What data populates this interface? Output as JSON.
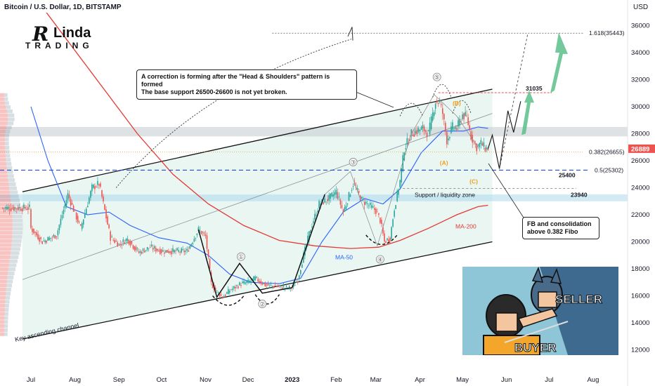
{
  "header": {
    "symbol": "Bitcoin / U.S. Dollar, 1D, BITSTAMP",
    "currency": "USD"
  },
  "logo": {
    "line1": "R",
    "line1b": "Linda",
    "line2": "TRADING"
  },
  "callouts": {
    "hs_line1": "A correction is forming after the \"Head & Shoulders\" pattern is formed",
    "hs_line2": "The base support 26500-26600 is not yet broken.",
    "fb_line1": "FB and consolidation",
    "fb_line2": "above 0.382 Fibo"
  },
  "annotations": {
    "support_zone": "Support / liquidity zone",
    "channel": "Key ascending channel",
    "ma50": "MA-50",
    "ma200": "MA-200",
    "wave_a": "(A)",
    "wave_b": "(B)",
    "wave_c": "(C)",
    "meme_seller": "SELLER",
    "meme_buyer": "BUYER"
  },
  "chart_data": {
    "type": "candlestick",
    "title": "Bitcoin / U.S. Dollar, 1D, BITSTAMP",
    "ylabel": "USD",
    "ylim": [
      11000,
      37500
    ],
    "y_ticks": [
      "12000",
      "14000",
      "16000",
      "18000",
      "20000",
      "22000",
      "24000",
      "26000",
      "28000",
      "30000",
      "32000",
      "34000",
      "36000"
    ],
    "x_ticks": [
      "Jul",
      "Aug",
      "Sep",
      "Oct",
      "Nov",
      "Dec",
      "2023",
      "Feb",
      "Mar",
      "Apr",
      "May",
      "Jun",
      "Jul",
      "Aug"
    ],
    "x_tick_index": [
      0,
      31,
      62,
      92,
      123,
      153,
      184,
      215,
      243,
      274,
      304,
      335,
      365,
      396
    ],
    "x_start": "2022-06-15",
    "price_path": [
      [
        0,
        21000
      ],
      [
        8,
        20000
      ],
      [
        18,
        20500
      ],
      [
        26,
        23500
      ],
      [
        35,
        21000
      ],
      [
        43,
        24000
      ],
      [
        48,
        24300
      ],
      [
        56,
        20300
      ],
      [
        62,
        19800
      ],
      [
        68,
        20200
      ],
      [
        76,
        19200
      ],
      [
        84,
        19600
      ],
      [
        92,
        19300
      ],
      [
        100,
        19300
      ],
      [
        110,
        19300
      ],
      [
        118,
        20900
      ],
      [
        123,
        20400
      ],
      [
        127,
        16900
      ],
      [
        131,
        16300
      ],
      [
        135,
        15900
      ],
      [
        140,
        16400
      ],
      [
        148,
        16900
      ],
      [
        153,
        17000
      ],
      [
        158,
        17300
      ],
      [
        165,
        16800
      ],
      [
        172,
        16700
      ],
      [
        180,
        16600
      ],
      [
        184,
        16600
      ],
      [
        188,
        17200
      ],
      [
        192,
        19000
      ],
      [
        197,
        21000
      ],
      [
        203,
        22800
      ],
      [
        210,
        23200
      ],
      [
        215,
        23700
      ],
      [
        220,
        22200
      ],
      [
        227,
        24300
      ],
      [
        233,
        23100
      ],
      [
        238,
        22700
      ],
      [
        243,
        22300
      ],
      [
        246,
        21600
      ],
      [
        249,
        20000
      ],
      [
        253,
        20300
      ],
      [
        256,
        22500
      ],
      [
        260,
        24500
      ],
      [
        263,
        26900
      ],
      [
        268,
        28000
      ],
      [
        272,
        28200
      ],
      [
        276,
        28400
      ],
      [
        280,
        28000
      ],
      [
        285,
        30400
      ],
      [
        288,
        30300
      ],
      [
        290,
        29500
      ],
      [
        293,
        27500
      ],
      [
        297,
        28500
      ],
      [
        300,
        28400
      ],
      [
        304,
        29400
      ],
      [
        307,
        29200
      ],
      [
        310,
        27800
      ],
      [
        314,
        27000
      ],
      [
        317,
        27300
      ],
      [
        320,
        26900
      ],
      [
        322,
        26889
      ]
    ],
    "ma50_path": [
      [
        0,
        30000
      ],
      [
        12,
        26000
      ],
      [
        25,
        22600
      ],
      [
        40,
        22000
      ],
      [
        55,
        22200
      ],
      [
        70,
        21200
      ],
      [
        90,
        20300
      ],
      [
        110,
        19900
      ],
      [
        125,
        19000
      ],
      [
        140,
        17600
      ],
      [
        155,
        17000
      ],
      [
        175,
        16900
      ],
      [
        190,
        17300
      ],
      [
        205,
        20000
      ],
      [
        220,
        22200
      ],
      [
        235,
        23200
      ],
      [
        248,
        22800
      ],
      [
        260,
        23900
      ],
      [
        275,
        26600
      ],
      [
        290,
        28200
      ],
      [
        305,
        28200
      ],
      [
        315,
        28500
      ],
      [
        322,
        28400
      ]
    ],
    "ma200_path": [
      [
        0,
        38500
      ],
      [
        25,
        35000
      ],
      [
        50,
        31500
      ],
      [
        75,
        28000
      ],
      [
        100,
        25000
      ],
      [
        125,
        22800
      ],
      [
        150,
        21200
      ],
      [
        175,
        20100
      ],
      [
        200,
        19700
      ],
      [
        225,
        19500
      ],
      [
        245,
        19600
      ],
      [
        260,
        20100
      ],
      [
        280,
        21000
      ],
      [
        300,
        22000
      ],
      [
        315,
        22600
      ],
      [
        322,
        22700
      ]
    ],
    "channel_upper": [
      [
        -6,
        23700
      ],
      [
        325,
        31300
      ]
    ],
    "channel_lower": [
      [
        -6,
        12800
      ],
      [
        325,
        20000
      ]
    ],
    "channel_mid": [
      [
        -6,
        17200
      ],
      [
        325,
        29500
      ]
    ],
    "levels": [
      {
        "label": "1.618(35443)",
        "value": 35443
      },
      {
        "label": "31035",
        "value": 31035
      },
      {
        "label": "0.382(26655)",
        "value": 26655
      },
      {
        "label": "0.5(25302)",
        "value": 25302
      },
      {
        "label": "25400",
        "value": 25400
      },
      {
        "label": "23940",
        "value": 23940
      }
    ],
    "zones": [
      [
        27800,
        28500
      ],
      [
        23000,
        23500
      ]
    ],
    "current_price": "26889",
    "pattern_labels": [
      "①",
      "②",
      "③",
      "④",
      "⑤"
    ],
    "colors": {
      "up": "#26a69a",
      "down": "#ef5350",
      "ma50": "#2962ff",
      "ma200": "#e53935",
      "channel": "#111111",
      "zone": "#cfd8dc",
      "accent": "#ff6f00"
    }
  }
}
